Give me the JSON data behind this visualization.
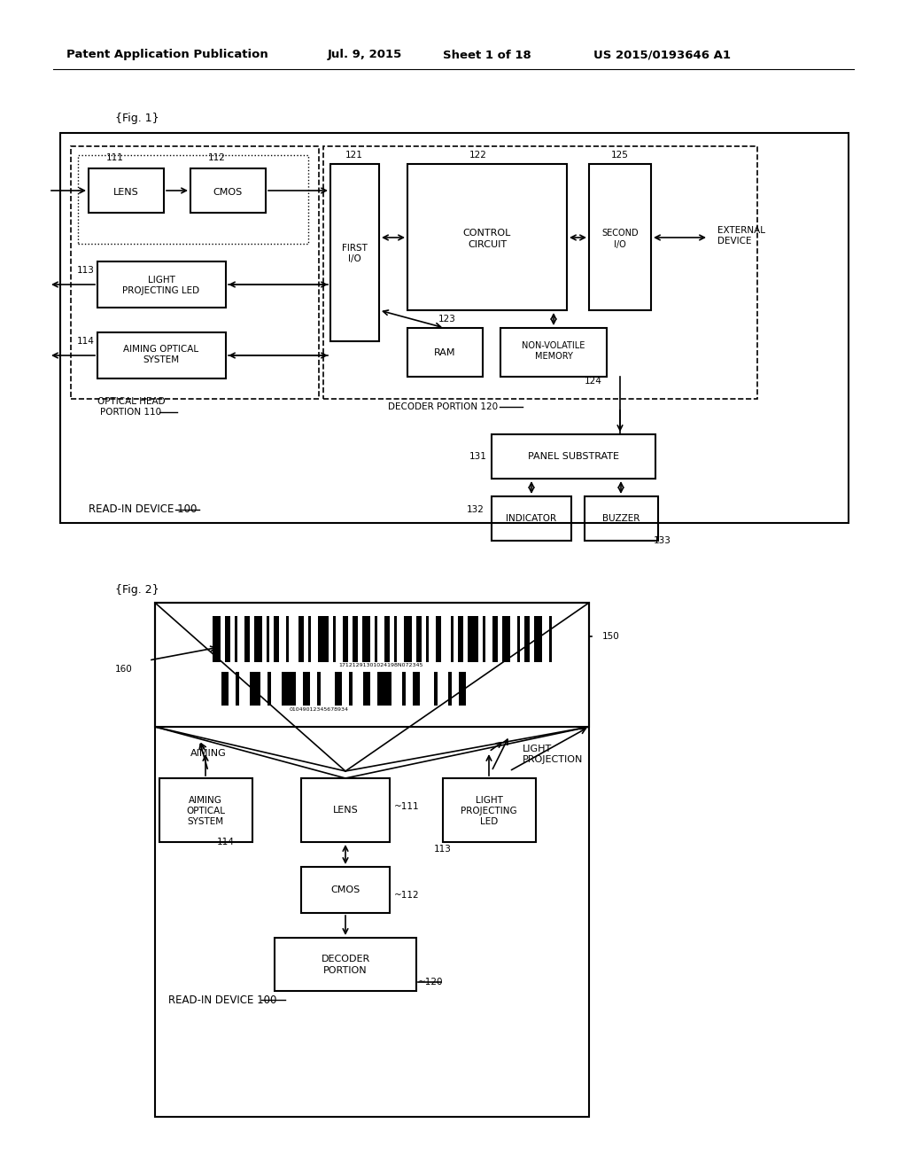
{
  "title_text": "Patent Application Publication",
  "title_date": "Jul. 9, 2015",
  "title_sheet": "Sheet 1 of 18",
  "title_patent": "US 2015/0193646 A1",
  "fig1_label": "{Fig. 1}",
  "fig2_label": "{Fig. 2}",
  "bg_color": "#ffffff",
  "box_color": "#000000",
  "text_color": "#000000"
}
